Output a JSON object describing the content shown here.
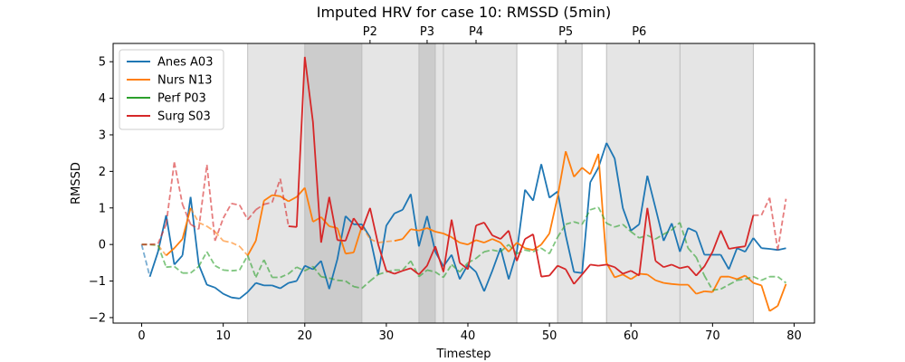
{
  "chart_data": {
    "type": "line",
    "title": "Imputed HRV for case 10: RMSSD (5min)",
    "xlabel": "Timestep",
    "ylabel": "RMSSD",
    "xlim": [
      -3.5,
      82.5
    ],
    "ylim": [
      -2.15,
      5.5
    ],
    "x_ticks": [
      0,
      10,
      20,
      30,
      40,
      50,
      60,
      70,
      80
    ],
    "y_ticks": [
      -2,
      -1,
      0,
      1,
      2,
      3,
      4,
      5
    ],
    "grid": false,
    "legend_position": "top-left",
    "phase_labels": [
      {
        "label": "P2",
        "x": 28
      },
      {
        "label": "P3",
        "x": 35
      },
      {
        "label": "P4",
        "x": 41
      },
      {
        "label": "P5",
        "x": 52
      },
      {
        "label": "P6",
        "x": 61
      }
    ],
    "shaded_regions": [
      {
        "start": 13,
        "end": 20,
        "shade": "light"
      },
      {
        "start": 20,
        "end": 27,
        "shade": "dark"
      },
      {
        "start": 27,
        "end": 34,
        "shade": "light"
      },
      {
        "start": 34,
        "end": 36,
        "shade": "dark"
      },
      {
        "start": 36,
        "end": 37,
        "shade": "light"
      },
      {
        "start": 37,
        "end": 46,
        "shade": "light"
      },
      {
        "start": 51,
        "end": 54,
        "shade": "light"
      },
      {
        "start": 57,
        "end": 66,
        "shade": "light"
      },
      {
        "start": 66,
        "end": 75,
        "shade": "light"
      }
    ],
    "series": [
      {
        "name": "Anes A03",
        "color": "#1f77b4",
        "values": [
          0,
          -0.88,
          -0.2,
          0.8,
          -0.55,
          -0.3,
          1.3,
          -0.55,
          -1.1,
          -1.18,
          -1.35,
          -1.45,
          -1.48,
          -1.3,
          -1.05,
          -1.12,
          -1.12,
          -1.2,
          -1.05,
          -1.0,
          -0.58,
          -0.68,
          -0.45,
          -1.22,
          -0.4,
          0.78,
          0.55,
          0.55,
          0.2,
          -0.82,
          0.52,
          0.85,
          0.95,
          1.38,
          -0.05,
          0.78,
          -0.2,
          -0.6,
          -0.28,
          -0.95,
          -0.55,
          -0.75,
          -1.28,
          -0.72,
          -0.1,
          -0.95,
          -0.2,
          1.5,
          1.2,
          2.2,
          1.28,
          1.45,
          0.25,
          -0.75,
          -0.78,
          1.7,
          2.1,
          2.78,
          2.35,
          1.0,
          0.38,
          0.55,
          1.88,
          1.0,
          0.1,
          0.58,
          -0.2,
          0.45,
          0.35,
          -0.28,
          -0.28,
          -0.28,
          -0.68,
          -0.1,
          -0.2,
          0.18,
          -0.1,
          -0.12,
          -0.15,
          -0.1
        ],
        "imputed": [
          [
            0,
            1
          ]
        ]
      },
      {
        "name": "Nurs N13",
        "color": "#ff7f0e",
        "values": [
          0,
          0,
          -0.02,
          -0.3,
          -0.1,
          0.15,
          1.0,
          0.6,
          0.5,
          0.35,
          0.1,
          0.05,
          -0.05,
          -0.3,
          0.1,
          1.2,
          1.35,
          1.32,
          1.18,
          1.3,
          1.55,
          0.62,
          0.75,
          0.5,
          0.45,
          -0.25,
          -0.22,
          0.5,
          0.15,
          0.05,
          0.08,
          0.1,
          0.15,
          0.42,
          0.38,
          0.45,
          0.35,
          0.3,
          0.2,
          0.05,
          0.0,
          0.12,
          0.05,
          0.15,
          0.05,
          -0.2,
          0.05,
          -0.1,
          -0.15,
          0.0,
          0.3,
          1.3,
          2.55,
          1.85,
          2.1,
          1.92,
          2.48,
          -0.5,
          -0.9,
          -0.82,
          -0.95,
          -0.8,
          -0.82,
          -0.98,
          -1.05,
          -1.08,
          -1.1,
          -1.1,
          -1.35,
          -1.28,
          -1.3,
          -0.88,
          -0.88,
          -0.95,
          -0.85,
          -1.05,
          -1.12,
          -1.82,
          -1.68,
          -1.08
        ],
        "imputed": [
          [
            0,
            3
          ],
          [
            6,
            13
          ],
          [
            27,
            31
          ]
        ]
      },
      {
        "name": "Perf P03",
        "color": "#2ca02c",
        "values": [
          0,
          0,
          -0.02,
          -0.62,
          -0.6,
          -0.78,
          -0.78,
          -0.6,
          -0.2,
          -0.58,
          -0.7,
          -0.72,
          -0.7,
          -0.3,
          -0.9,
          -0.42,
          -0.9,
          -0.9,
          -0.8,
          -0.62,
          -0.72,
          -0.6,
          -0.88,
          -0.92,
          -0.98,
          -1.0,
          -1.15,
          -1.2,
          -1.0,
          -0.82,
          -0.75,
          -0.7,
          -0.7,
          -0.45,
          -0.88,
          -0.7,
          -0.75,
          -0.9,
          -0.55,
          -0.75,
          -0.5,
          -0.38,
          -0.2,
          -0.15,
          -0.2,
          0.0,
          -0.25,
          -0.15,
          -0.2,
          -0.1,
          -0.25,
          0.2,
          0.55,
          0.62,
          0.55,
          0.95,
          1.02,
          0.58,
          0.48,
          0.55,
          0.35,
          0.18,
          0.25,
          0.15,
          0.28,
          0.4,
          0.6,
          -0.1,
          -0.35,
          -0.85,
          -1.25,
          -1.22,
          -1.1,
          -0.98,
          -0.95,
          -0.88,
          -0.98,
          -0.88,
          -0.88,
          -1.05
        ],
        "imputed": [
          [
            0,
            79
          ]
        ]
      },
      {
        "name": "Surg S03",
        "color": "#d62728",
        "values": [
          0,
          0,
          0.02,
          0.55,
          2.25,
          1.1,
          0.55,
          0.42,
          2.18,
          0.1,
          0.72,
          1.12,
          1.08,
          0.68,
          0.95,
          1.1,
          1.15,
          1.8,
          0.5,
          0.48,
          5.13,
          3.35,
          0.05,
          1.3,
          0.12,
          0.1,
          0.72,
          0.4,
          1.0,
          0.0,
          -0.72,
          -0.8,
          -0.72,
          -0.65,
          -0.82,
          -0.58,
          -0.05,
          -0.75,
          0.68,
          -0.5,
          -0.68,
          0.52,
          0.6,
          0.25,
          0.15,
          0.38,
          -0.45,
          0.15,
          0.28,
          -0.88,
          -0.85,
          -0.58,
          -0.68,
          -1.08,
          -0.82,
          -0.55,
          -0.58,
          -0.55,
          -0.62,
          -0.8,
          -0.72,
          -0.85,
          1.0,
          -0.45,
          -0.62,
          -0.55,
          -0.65,
          -0.6,
          -0.85,
          -0.6,
          -0.2,
          0.38,
          -0.12,
          -0.08,
          -0.05,
          0.8,
          0.8,
          1.28,
          -0.15,
          1.25
        ],
        "imputed": [
          [
            0,
            18
          ],
          [
            75,
            79
          ]
        ]
      }
    ]
  }
}
